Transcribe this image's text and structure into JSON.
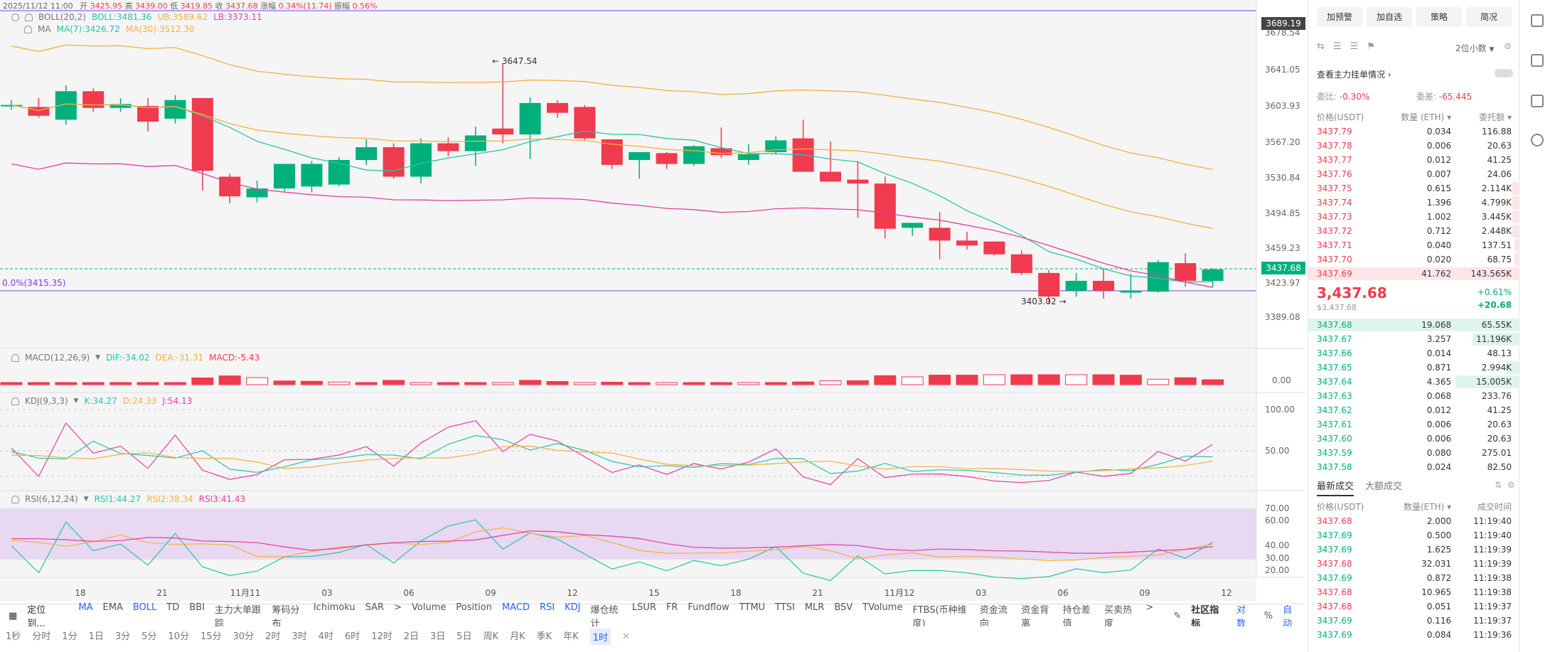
{
  "header": {
    "time": "2025/11/12 11:00",
    "open_label": "开",
    "open": "3425.95",
    "high_label": "高",
    "high": "3439.00",
    "low_label": "低",
    "low": "3419.85",
    "close_label": "收",
    "close": "3437.68",
    "change_label": "涨幅",
    "change": "0.34%(11.74)",
    "amp_label": "振幅",
    "amp": "0.56%"
  },
  "indicators": {
    "boll": {
      "name": "BOLL(20,2)",
      "boll": "BOLL:3481.36",
      "ub": "UB:3589.62",
      "lb": "LB:3373.11"
    },
    "ma": {
      "name": "MA",
      "ma7": "MA(7):3426.72",
      "ma30": "MA(30):3512.30"
    },
    "fib": "0.0%(3415.35)",
    "high_mark": "3647.54",
    "low_mark": "3403.02",
    "macd": {
      "name": "MACD(12,26,9)",
      "dif": "DIF:-34.02",
      "dea": "DEA:-31.31",
      "macd": "MACD:-5.43"
    },
    "kdj": {
      "name": "KDJ(9,3,3)",
      "k": "K:34.27",
      "d": "D:24.33",
      "j": "J:54.13"
    },
    "rsi": {
      "name": "RSI(6,12,24)",
      "rsi1": "RSI1:44.27",
      "rsi2": "RSI2:38.34",
      "rsi3": "RSI3:41.43"
    }
  },
  "price_axis": {
    "ticks": [
      "3678.54",
      "3641.05",
      "3603.93",
      "3567.20",
      "3530.84",
      "3494.85",
      "3459.23",
      "3423.97",
      "3389.08"
    ],
    "top_tag": "3689.19",
    "current_tag": "3437.68",
    "macd_ticks": [
      "0.00"
    ],
    "kdj_ticks": [
      "100.00",
      "50.00"
    ],
    "rsi_ticks": [
      "70.00",
      "60.00",
      "40.00",
      "30.00",
      "20.00"
    ]
  },
  "time_axis": [
    "18",
    "21",
    "11月11",
    "03",
    "06",
    "09",
    "12",
    "15",
    "18",
    "21",
    "11月12",
    "03",
    "06",
    "09",
    "12"
  ],
  "chart_data": {
    "type": "candlestick",
    "candles": [
      {
        "o": 3605,
        "h": 3610,
        "l": 3600,
        "c": 3605
      },
      {
        "o": 3603,
        "h": 3612,
        "l": 3592,
        "c": 3594
      },
      {
        "o": 3590,
        "h": 3625,
        "l": 3585,
        "c": 3619
      },
      {
        "o": 3619,
        "h": 3622,
        "l": 3598,
        "c": 3602
      },
      {
        "o": 3602,
        "h": 3612,
        "l": 3598,
        "c": 3606
      },
      {
        "o": 3604,
        "h": 3612,
        "l": 3578,
        "c": 3588
      },
      {
        "o": 3591,
        "h": 3615,
        "l": 3586,
        "c": 3610
      },
      {
        "o": 3612,
        "h": 3612,
        "l": 3518,
        "c": 3538
      },
      {
        "o": 3532,
        "h": 3535,
        "l": 3505,
        "c": 3512
      },
      {
        "o": 3511,
        "h": 3528,
        "l": 3506,
        "c": 3520
      },
      {
        "o": 3520,
        "h": 3544,
        "l": 3517,
        "c": 3545
      },
      {
        "o": 3522,
        "h": 3548,
        "l": 3516,
        "c": 3545
      },
      {
        "o": 3524,
        "h": 3552,
        "l": 3522,
        "c": 3549
      },
      {
        "o": 3549,
        "h": 3570,
        "l": 3544,
        "c": 3562
      },
      {
        "o": 3562,
        "h": 3566,
        "l": 3530,
        "c": 3532
      },
      {
        "o": 3532,
        "h": 3571,
        "l": 3525,
        "c": 3566
      },
      {
        "o": 3566,
        "h": 3572,
        "l": 3553,
        "c": 3558
      },
      {
        "o": 3558,
        "h": 3583,
        "l": 3543,
        "c": 3574
      },
      {
        "o": 3581,
        "h": 3647.54,
        "l": 3566,
        "c": 3575
      },
      {
        "o": 3575,
        "h": 3613,
        "l": 3550,
        "c": 3607
      },
      {
        "o": 3607,
        "h": 3610,
        "l": 3592,
        "c": 3597
      },
      {
        "o": 3603,
        "h": 3605,
        "l": 3569,
        "c": 3571
      },
      {
        "o": 3570,
        "h": 3570,
        "l": 3540,
        "c": 3544
      },
      {
        "o": 3549,
        "h": 3555,
        "l": 3530,
        "c": 3557
      },
      {
        "o": 3556,
        "h": 3557,
        "l": 3540,
        "c": 3545
      },
      {
        "o": 3545,
        "h": 3564,
        "l": 3543,
        "c": 3563
      },
      {
        "o": 3561,
        "h": 3582,
        "l": 3551,
        "c": 3554
      },
      {
        "o": 3549,
        "h": 3565,
        "l": 3544,
        "c": 3555
      },
      {
        "o": 3557,
        "h": 3573,
        "l": 3555,
        "c": 3569
      },
      {
        "o": 3571,
        "h": 3590,
        "l": 3538,
        "c": 3537
      },
      {
        "o": 3537,
        "h": 3568,
        "l": 3528,
        "c": 3527
      },
      {
        "o": 3529,
        "h": 3548,
        "l": 3490,
        "c": 3525
      },
      {
        "o": 3525,
        "h": 3532,
        "l": 3469,
        "c": 3479
      },
      {
        "o": 3480,
        "h": 3485,
        "l": 3472,
        "c": 3485
      },
      {
        "o": 3480,
        "h": 3496,
        "l": 3448,
        "c": 3467
      },
      {
        "o": 3467,
        "h": 3476,
        "l": 3458,
        "c": 3462
      },
      {
        "o": 3466,
        "h": 3466,
        "l": 3452,
        "c": 3453
      },
      {
        "o": 3453,
        "h": 3457,
        "l": 3432,
        "c": 3434
      },
      {
        "o": 3434,
        "h": 3437,
        "l": 3403.02,
        "c": 3410
      },
      {
        "o": 3416,
        "h": 3434,
        "l": 3410,
        "c": 3426
      },
      {
        "o": 3426,
        "h": 3438,
        "l": 3408,
        "c": 3416
      },
      {
        "o": 3414,
        "h": 3433,
        "l": 3408,
        "c": 3416
      },
      {
        "o": 3415,
        "h": 3447,
        "l": 3414,
        "c": 3445
      },
      {
        "o": 3444,
        "h": 3454,
        "l": 3420,
        "c": 3426
      },
      {
        "o": 3425.95,
        "h": 3439.0,
        "l": 3419.85,
        "c": 3437.68
      }
    ]
  },
  "toolbar1": {
    "locate": "定位到...",
    "items": [
      "MA",
      "EMA",
      "BOLL",
      "TD",
      "BBI",
      "主力大单跟踪",
      "筹码分布",
      "Ichimoku",
      "SAR",
      ">",
      "Volume",
      "Position",
      "MACD",
      "RSI",
      "KDJ",
      "爆仓统计",
      "LSUR",
      "FR",
      "Fundflow",
      "TTMU",
      "TTSI",
      "MLR",
      "BSV",
      "TVolume",
      "FTBS(币种维度)",
      "资金流向",
      "资金背离",
      "持仓差值",
      "买卖热度",
      ">"
    ],
    "active": [
      "MA",
      "BOLL",
      "MACD",
      "RSI",
      "KDJ"
    ],
    "community": "社区指标",
    "log": "对数",
    "pct": "%",
    "auto": "自动"
  },
  "toolbar2": {
    "items": [
      "1秒",
      "分时",
      "1分",
      "1日",
      "3分",
      "5分",
      "10分",
      "15分",
      "30分",
      "2时",
      "3时",
      "4时",
      "6时",
      "12时",
      "2日",
      "3日",
      "5日",
      "周K",
      "月K",
      "季K",
      "年K",
      "1时"
    ],
    "active": "1时"
  },
  "right_panel": {
    "buttons": [
      "加预警",
      "加自选",
      "策略",
      "简况"
    ],
    "precision": "2位小数",
    "view_orders": "查看主力挂单情况",
    "ratio_label": "委比:",
    "ratio": "-0.30%",
    "diff_label": "委差:",
    "diff": "-65.445",
    "headers": {
      "price": "价格(USDT)",
      "qty": "数量 (ETH)",
      "total": "委托额"
    },
    "asks": [
      {
        "p": "3437.79",
        "q": "0.034",
        "t": "116.88",
        "w": 0
      },
      {
        "p": "3437.78",
        "q": "0.006",
        "t": "20.63",
        "w": 0
      },
      {
        "p": "3437.77",
        "q": "0.012",
        "t": "41.25",
        "w": 0
      },
      {
        "p": "3437.76",
        "q": "0.007",
        "t": "24.06",
        "w": 0
      },
      {
        "p": "3437.75",
        "q": "0.615",
        "t": "2.114K",
        "w": 3
      },
      {
        "p": "3437.74",
        "q": "1.396",
        "t": "4.799K",
        "w": 3
      },
      {
        "p": "3437.73",
        "q": "1.002",
        "t": "3.445K",
        "w": 3
      },
      {
        "p": "3437.72",
        "q": "0.712",
        "t": "2.448K",
        "w": 3
      },
      {
        "p": "3437.71",
        "q": "0.040",
        "t": "137.51",
        "w": 2
      },
      {
        "p": "3437.70",
        "q": "0.020",
        "t": "68.75",
        "w": 2
      },
      {
        "p": "3437.69",
        "q": "41.762",
        "t": "143.565K",
        "w": 100
      }
    ],
    "last_price": "3,437.68",
    "last_usd": "$3,437.68",
    "chg_pct": "+0.61%",
    "chg_abs": "+20.68",
    "bids": [
      {
        "p": "3437.68",
        "q": "19.068",
        "t": "65.55K",
        "w": 100
      },
      {
        "p": "3437.67",
        "q": "3.257",
        "t": "11.196K",
        "w": 22
      },
      {
        "p": "3437.66",
        "q": "0.014",
        "t": "48.13",
        "w": 0
      },
      {
        "p": "3437.65",
        "q": "0.871",
        "t": "2.994K",
        "w": 6
      },
      {
        "p": "3437.64",
        "q": "4.365",
        "t": "15.005K",
        "w": 30
      },
      {
        "p": "3437.63",
        "q": "0.068",
        "t": "233.76",
        "w": 0
      },
      {
        "p": "3437.62",
        "q": "0.012",
        "t": "41.25",
        "w": 0
      },
      {
        "p": "3437.61",
        "q": "0.006",
        "t": "20.63",
        "w": 0
      },
      {
        "p": "3437.60",
        "q": "0.006",
        "t": "20.63",
        "w": 0
      },
      {
        "p": "3437.59",
        "q": "0.080",
        "t": "275.01",
        "w": 0
      },
      {
        "p": "3437.58",
        "q": "0.024",
        "t": "82.50",
        "w": 0
      }
    ],
    "trade_tabs": [
      "最新成交",
      "大额成交"
    ],
    "trade_headers": {
      "price": "价格(USDT)",
      "qty": "数量(ETH)",
      "time": "成交时间"
    },
    "trades": [
      {
        "p": "3437.68",
        "q": "2.000",
        "t": "11:19:40",
        "side": "sell"
      },
      {
        "p": "3437.69",
        "q": "0.500",
        "t": "11:19:40",
        "side": "buy"
      },
      {
        "p": "3437.69",
        "q": "1.625",
        "t": "11:19:39",
        "side": "buy"
      },
      {
        "p": "3437.68",
        "q": "32.031",
        "t": "11:19:39",
        "side": "sell"
      },
      {
        "p": "3437.69",
        "q": "0.872",
        "t": "11:19:38",
        "side": "buy"
      },
      {
        "p": "3437.68",
        "q": "10.965",
        "t": "11:19:38",
        "side": "sell"
      },
      {
        "p": "3437.68",
        "q": "0.051",
        "t": "11:19:37",
        "side": "sell"
      },
      {
        "p": "3437.69",
        "q": "0.116",
        "t": "11:19:37",
        "side": "buy"
      },
      {
        "p": "3437.69",
        "q": "0.084",
        "t": "11:19:36",
        "side": "buy"
      }
    ]
  },
  "colors": {
    "up": "#00b07c",
    "down": "#f03a4d",
    "ma7": "#26c6a6",
    "ma30": "#f5b041",
    "boll_lb": "#e040a0",
    "accent": "#2962ff"
  }
}
